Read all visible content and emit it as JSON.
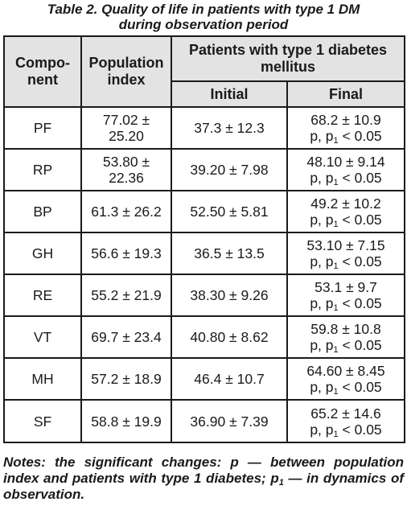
{
  "caption": {
    "line1": "Table 2.  Quality of life in patients with type 1 DM",
    "line2": "during observation period"
  },
  "header": {
    "component_line1": "Compo-",
    "component_line2": "nent",
    "population_line1": "Population",
    "population_line2": "index",
    "patients_line1": "Patients with type 1 diabetes",
    "patients_line2": "mellitus",
    "initial": "Initial",
    "final": "Final"
  },
  "rows": [
    {
      "component": "PF",
      "pop_line1": "77.02 ±",
      "pop_line2": "25.20",
      "initial": "37.3 ± 12.3",
      "final_value": "68.2 ± 10.9",
      "final_p": "p, p",
      "final_sub": "1",
      "final_tail": " < 0.05"
    },
    {
      "component": "RP",
      "pop_line1": "53.80 ±",
      "pop_line2": "22.36",
      "initial": "39.20 ± 7.98",
      "final_value": "48.10 ± 9.14",
      "final_p": "p, p",
      "final_sub": "1",
      "final_tail": " < 0.05"
    },
    {
      "component": "BP",
      "pop": "61.3 ± 26.2",
      "initial": "52.50 ± 5.81",
      "final_value": "49.2 ± 10.2",
      "final_p": "p, p",
      "final_sub": "1",
      "final_tail": " < 0.05"
    },
    {
      "component": "GH",
      "pop": "56.6 ± 19.3",
      "initial": "36.5 ± 13.5",
      "final_value": "53.10 ± 7.15",
      "final_p": "p, p",
      "final_sub": "1",
      "final_tail": " < 0.05"
    },
    {
      "component": "RE",
      "pop": "55.2 ± 21.9",
      "initial": "38.30 ± 9.26",
      "final_value": "53.1 ± 9.7",
      "final_p": "p, p",
      "final_sub": "1",
      "final_tail": " < 0.05"
    },
    {
      "component": "VT",
      "pop": "69.7 ± 23.4",
      "initial": "40.80 ± 8.62",
      "final_value": "59.8 ± 10.8",
      "final_p": "p, p",
      "final_sub": "1",
      "final_tail": " < 0.05"
    },
    {
      "component": "MH",
      "pop": "57.2 ± 18.9",
      "initial": "46.4 ± 10.7",
      "final_value": "64.60 ± 8.45",
      "final_p": "p, p",
      "final_sub": "1",
      "final_tail": " < 0.05"
    },
    {
      "component": "SF",
      "pop": "58.8 ± 19.9",
      "initial": "36.90 ± 7.39",
      "final_value": "65.2 ± 14.6",
      "final_p": "p, p",
      "final_sub": "1",
      "final_tail": " < 0.05"
    }
  ],
  "notes": {
    "text_a": "Notes: the significant changes: p — between population index and patients with type 1 diabetes; p",
    "sub": "1",
    "text_b": " — in dynamics of observation."
  }
}
